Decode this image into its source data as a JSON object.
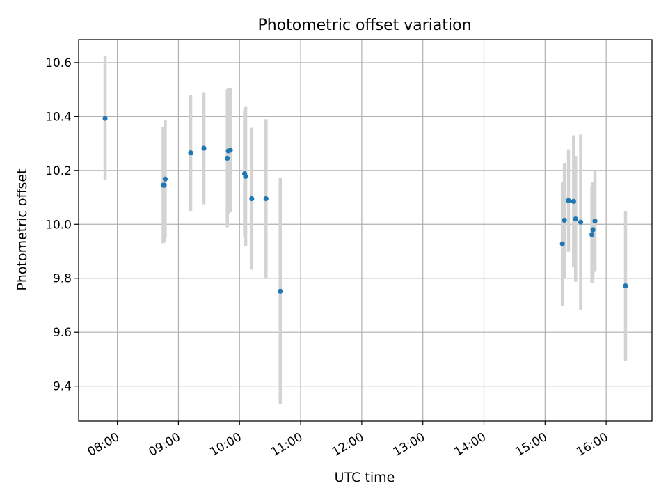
{
  "chart_data": {
    "type": "scatter",
    "title": "Photometric offset variation",
    "xlabel": "UTC time",
    "ylabel": "Photometric offset",
    "x_tick_labels": [
      "08:00",
      "09:00",
      "10:00",
      "11:00",
      "12:00",
      "13:00",
      "14:00",
      "15:00",
      "16:00"
    ],
    "y_tick_labels": [
      "9.4",
      "9.6",
      "9.8",
      "10.0",
      "10.2",
      "10.4",
      "10.6"
    ],
    "xlim": [
      "07:22",
      "16:45"
    ],
    "ylim": [
      9.27,
      10.685
    ],
    "grid": true,
    "colors": {
      "point": "#1f77b4",
      "errorbar": "#d3d3d3",
      "grid": "#b0b0b0"
    },
    "points": [
      {
        "x": "07:48",
        "y": 10.393,
        "err": 0.23
      },
      {
        "x": "08:45",
        "y": 10.145,
        "err": 0.215
      },
      {
        "x": "08:46",
        "y": 10.145,
        "err": 0.21
      },
      {
        "x": "08:47",
        "y": 10.168,
        "err": 0.218
      },
      {
        "x": "09:12",
        "y": 10.265,
        "err": 0.215
      },
      {
        "x": "09:25",
        "y": 10.282,
        "err": 0.208
      },
      {
        "x": "09:48",
        "y": 10.245,
        "err": 0.256
      },
      {
        "x": "09:49",
        "y": 10.272,
        "err": 0.232
      },
      {
        "x": "09:51",
        "y": 10.275,
        "err": 0.23
      },
      {
        "x": "10:05",
        "y": 10.188,
        "err": 0.235
      },
      {
        "x": "10:06",
        "y": 10.178,
        "err": 0.26
      },
      {
        "x": "10:12",
        "y": 10.095,
        "err": 0.263
      },
      {
        "x": "10:26",
        "y": 10.095,
        "err": 0.295
      },
      {
        "x": "10:40",
        "y": 9.752,
        "err": 0.42
      },
      {
        "x": "15:17",
        "y": 9.928,
        "err": 0.23
      },
      {
        "x": "15:19",
        "y": 10.015,
        "err": 0.213
      },
      {
        "x": "15:23",
        "y": 10.088,
        "err": 0.19
      },
      {
        "x": "15:28",
        "y": 10.085,
        "err": 0.245
      },
      {
        "x": "15:30",
        "y": 10.02,
        "err": 0.233
      },
      {
        "x": "15:35",
        "y": 10.008,
        "err": 0.325
      },
      {
        "x": "15:46",
        "y": 9.962,
        "err": 0.18
      },
      {
        "x": "15:47",
        "y": 9.98,
        "err": 0.178
      },
      {
        "x": "15:49",
        "y": 10.012,
        "err": 0.188
      },
      {
        "x": "16:19",
        "y": 9.772,
        "err": 0.278
      }
    ]
  }
}
